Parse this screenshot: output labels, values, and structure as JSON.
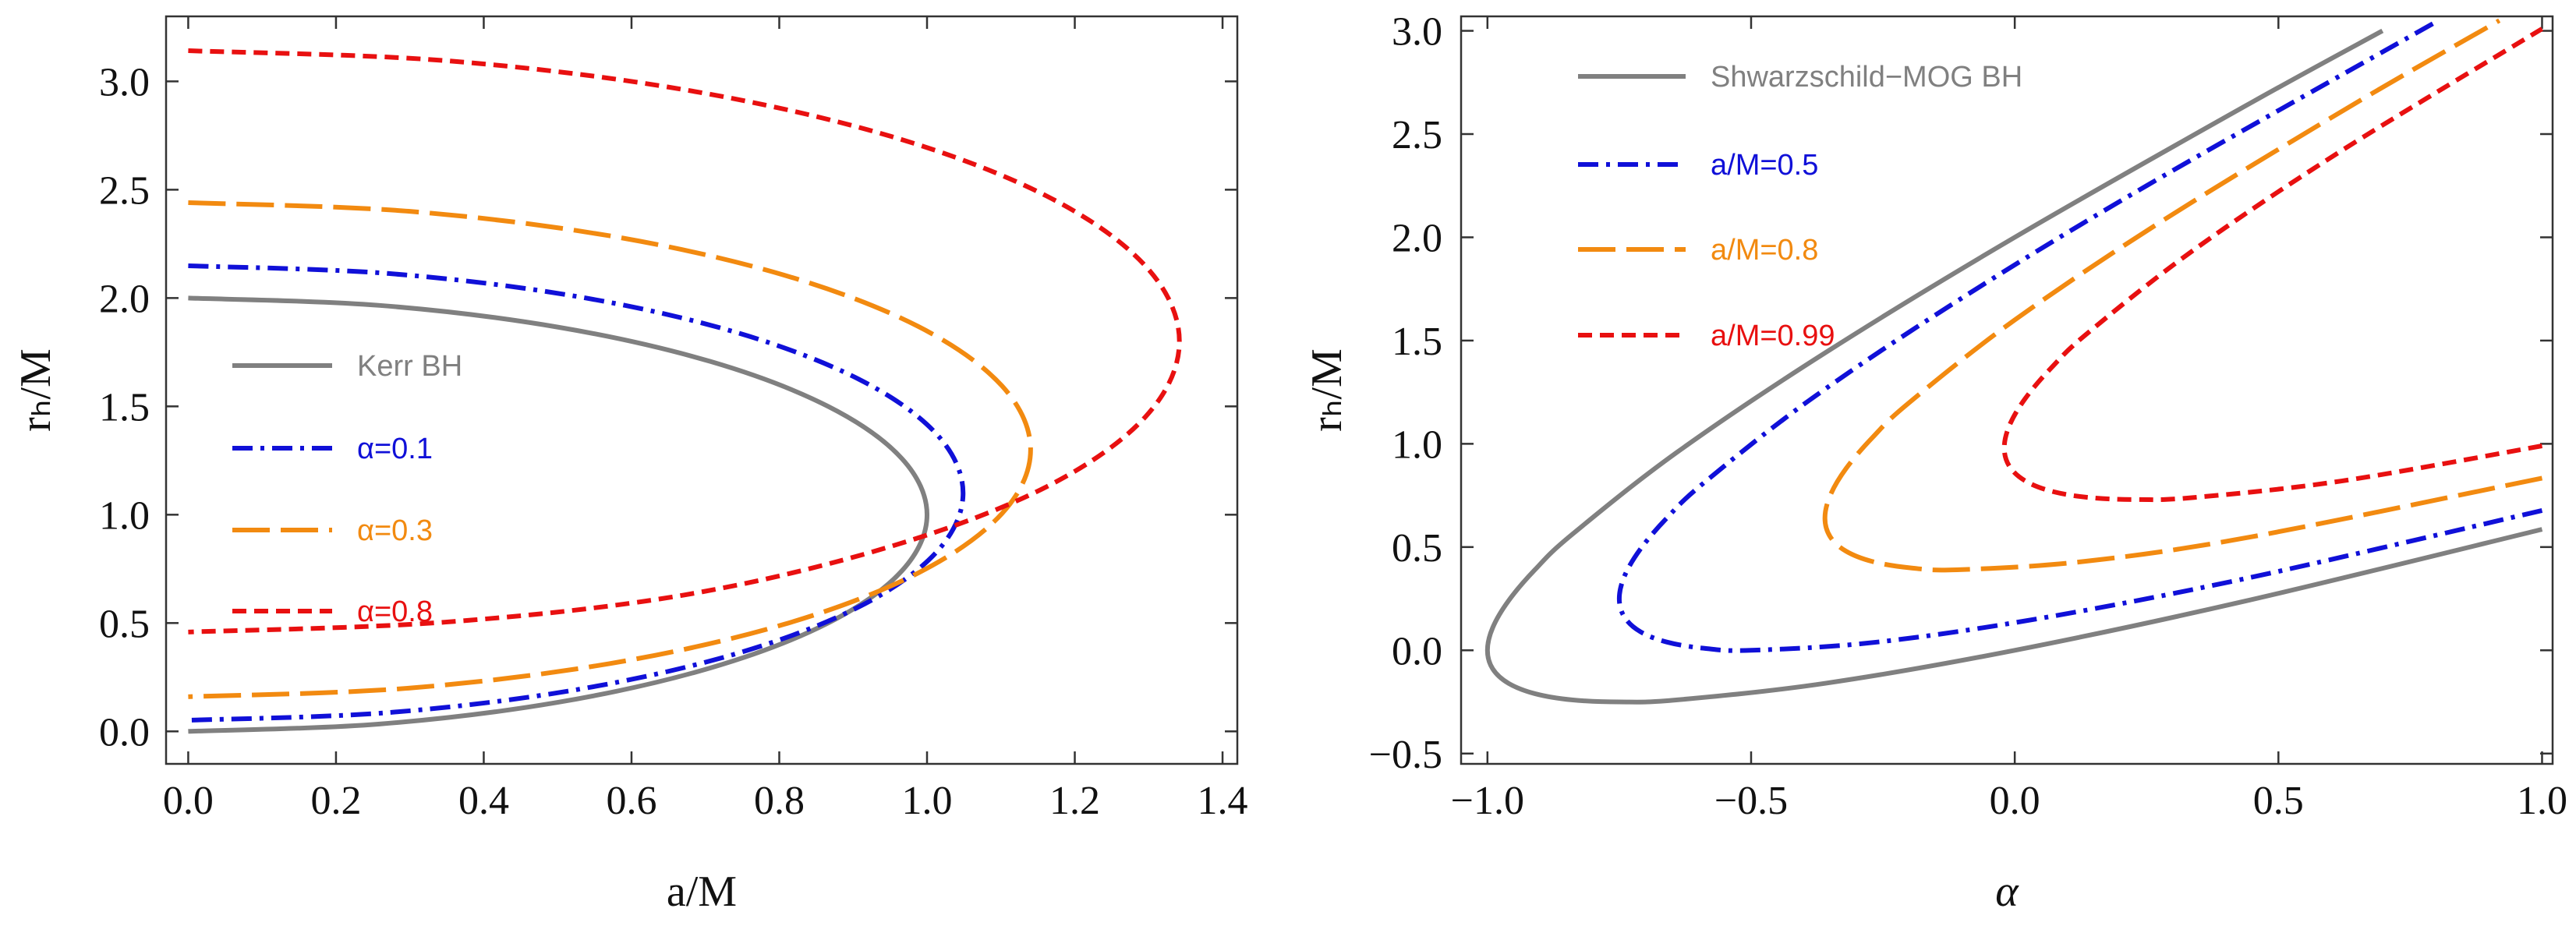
{
  "chart_data": [
    {
      "type": "line",
      "x_label": "a/M",
      "y_label": "rₕ/M",
      "xlim": [
        -0.03,
        1.42
      ],
      "ylim": [
        -0.15,
        3.3
      ],
      "xticks": [
        {
          "value": 0,
          "label": "0.0"
        },
        {
          "value": 0.2,
          "label": "0.2"
        },
        {
          "value": 0.4,
          "label": "0.4"
        },
        {
          "value": 0.6,
          "label": "0.6"
        },
        {
          "value": 0.8,
          "label": "0.8"
        },
        {
          "value": 1,
          "label": "1.0"
        },
        {
          "value": 1.2,
          "label": "1.2"
        },
        {
          "value": 1.4,
          "label": "1.4"
        }
      ],
      "yticks": [
        {
          "value": 0,
          "label": "0.0"
        },
        {
          "value": 0.5,
          "label": "0.5"
        },
        {
          "value": 1,
          "label": "1.0"
        },
        {
          "value": 1.5,
          "label": "1.5"
        },
        {
          "value": 2,
          "label": "2.0"
        },
        {
          "value": 2.5,
          "label": "2.5"
        },
        {
          "value": 3,
          "label": "3.0"
        }
      ],
      "series": [
        {
          "name": "Kerr BH",
          "color": "#808080",
          "dash": "solid",
          "x": [
            0,
            0.259,
            0.5,
            0.707,
            0.866,
            0.966,
            1,
            0.966,
            0.866,
            0.707,
            0.5,
            0.259,
            0
          ],
          "values": [
            2,
            1.966,
            1.866,
            1.707,
            1.5,
            1.259,
            1,
            0.741,
            0.5,
            0.293,
            0.134,
            0.034,
            0
          ]
        },
        {
          "name": "α=0.1",
          "color": "#1010d8",
          "dash": "dotdash",
          "x": [
            0,
            0.2715,
            0.5244,
            0.7416,
            0.9083,
            1.0131,
            1.0488,
            1.0131,
            0.9083,
            0.7416,
            0.5244,
            0.2715,
            0
          ],
          "values": [
            2.1488,
            2.1131,
            2.0083,
            1.8416,
            1.6244,
            1.3715,
            1.1,
            0.8285,
            0.5756,
            0.3584,
            0.1917,
            0.0869,
            0.0512
          ]
        },
        {
          "name": "α=0.3",
          "color": "#f28a10",
          "dash": "long",
          "x": [
            0,
            0.2951,
            0.5701,
            0.8062,
            0.9874,
            1.1013,
            1.1402,
            1.1013,
            0.9874,
            0.8062,
            0.5701,
            0.2951,
            0
          ],
          "values": [
            2.4402,
            2.4013,
            2.2874,
            2.1062,
            1.8701,
            1.5951,
            1.3,
            1.0049,
            0.7299,
            0.4938,
            0.3126,
            0.1987,
            0.1598
          ]
        },
        {
          "name": "α=0.8",
          "color": "#e81010",
          "dash": "short",
          "x": [
            0,
            0.3472,
            0.6708,
            0.9487,
            1.1619,
            1.2959,
            1.3416,
            1.2959,
            1.1619,
            0.9487,
            0.6708,
            0.3472,
            0
          ],
          "values": [
            3.1416,
            3.0959,
            2.9619,
            2.7487,
            2.4708,
            2.1472,
            1.8,
            1.4528,
            1.1292,
            0.8513,
            0.6292,
            0.5041,
            0.4584
          ]
        }
      ]
    },
    {
      "type": "line",
      "x_label": "α",
      "y_label": "rₕ/M",
      "xlim": [
        -1.05,
        1.02
      ],
      "ylim": [
        -0.55,
        3.07
      ],
      "xticks": [
        {
          "value": -1,
          "label": "−1.0"
        },
        {
          "value": -0.5,
          "label": "−0.5"
        },
        {
          "value": 0,
          "label": "0.0"
        },
        {
          "value": 0.5,
          "label": "0.5"
        },
        {
          "value": 1,
          "label": "1.0"
        }
      ],
      "yticks": [
        {
          "value": -0.5,
          "label": "−0.5"
        },
        {
          "value": 0,
          "label": "0.0"
        },
        {
          "value": 0.5,
          "label": "0.5"
        },
        {
          "value": 1,
          "label": "1.0"
        },
        {
          "value": 1.5,
          "label": "1.5"
        },
        {
          "value": 2,
          "label": "2.0"
        },
        {
          "value": 2.5,
          "label": "2.5"
        },
        {
          "value": 3,
          "label": "3.0"
        }
      ],
      "series": [
        {
          "name": "Shwarzschild−MOG BH",
          "color": "#808080",
          "dash": "solid",
          "x": [
            1,
            0.44,
            0,
            -0.36,
            -0.64,
            -0.75,
            -0.84,
            -0.91,
            -0.96,
            -0.99,
            -1,
            -0.99,
            -0.96,
            -0.91,
            -0.84,
            -0.64,
            -0.36,
            0,
            0.44,
            0.6973
          ],
          "values": [
            0.5858,
            0.24,
            0,
            -0.16,
            -0.24,
            -0.25,
            -0.24,
            -0.21,
            -0.16,
            -0.09,
            0,
            0.11,
            0.24,
            0.39,
            0.56,
            0.96,
            1.44,
            2,
            2.64,
            3
          ]
        },
        {
          "name": "a/M=0.5",
          "color": "#1010d8",
          "dash": "dotdash",
          "x": [
            1,
            0.46,
            0.06,
            -0.26,
            -0.5,
            -0.59,
            -0.66,
            -0.71,
            -0.74,
            -0.75,
            -0.74,
            -0.71,
            -0.66,
            -0.59,
            -0.39,
            -0.11,
            0.25,
            0.8035
          ],
          "values": [
            0.6771,
            0.36,
            0.16,
            0.04,
            0,
            0.01,
            0.04,
            0.09,
            0.16,
            0.25,
            0.36,
            0.49,
            0.64,
            0.81,
            1.21,
            1.69,
            2.25,
            3.05
          ]
        },
        {
          "name": "a/M=0.8",
          "color": "#f28a10",
          "dash": "long",
          "x": [
            1,
            0.45,
            0.13,
            -0.11,
            -0.2,
            -0.27,
            -0.32,
            -0.35,
            -0.36,
            -0.35,
            -0.32,
            -0.27,
            -0.2,
            0,
            0.28,
            0.64,
            0.919
          ],
          "values": [
            0.8338,
            0.55,
            0.43,
            0.39,
            0.4,
            0.43,
            0.48,
            0.55,
            0.64,
            0.75,
            0.88,
            1.03,
            1.2,
            1.6,
            2.08,
            2.64,
            3.05
          ]
        },
        {
          "name": "a/M=0.99",
          "color": "#e81010",
          "dash": "short",
          "x": [
            1,
            0.6201,
            0.3401,
            0.2301,
            0.1401,
            0.0701,
            0.0201,
            -0.0099,
            -0.0199,
            -0.0099,
            0.0201,
            0.0701,
            0.1401,
            0.3401,
            0.6201,
            1
          ],
          "values": [
            0.9901,
            0.8201,
            0.7401,
            0.7301,
            0.7401,
            0.7701,
            0.8201,
            0.8901,
            0.9801,
            1.0901,
            1.2201,
            1.3701,
            1.5401,
            1.9401,
            2.4201,
            3.0099
          ]
        }
      ]
    }
  ]
}
